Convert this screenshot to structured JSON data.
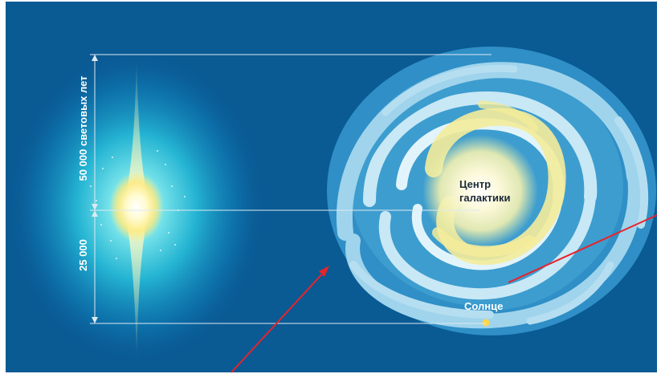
{
  "labels": {
    "vertical_upper": "50 000 световых лет",
    "vertical_lower": "25 000",
    "center_line1": "Центр",
    "center_line2": "галактики",
    "sun": "Солнце"
  },
  "colors": {
    "background": "#0a5a94",
    "halo": "#37c9df",
    "arm_light": "#d9f0f8",
    "arm_mid": "#7cc4e2",
    "core": "#fff2a0",
    "sun_dot": "#ffd84a",
    "pointer_line": "#e8232b",
    "guide_line": "#dfe9f1"
  }
}
